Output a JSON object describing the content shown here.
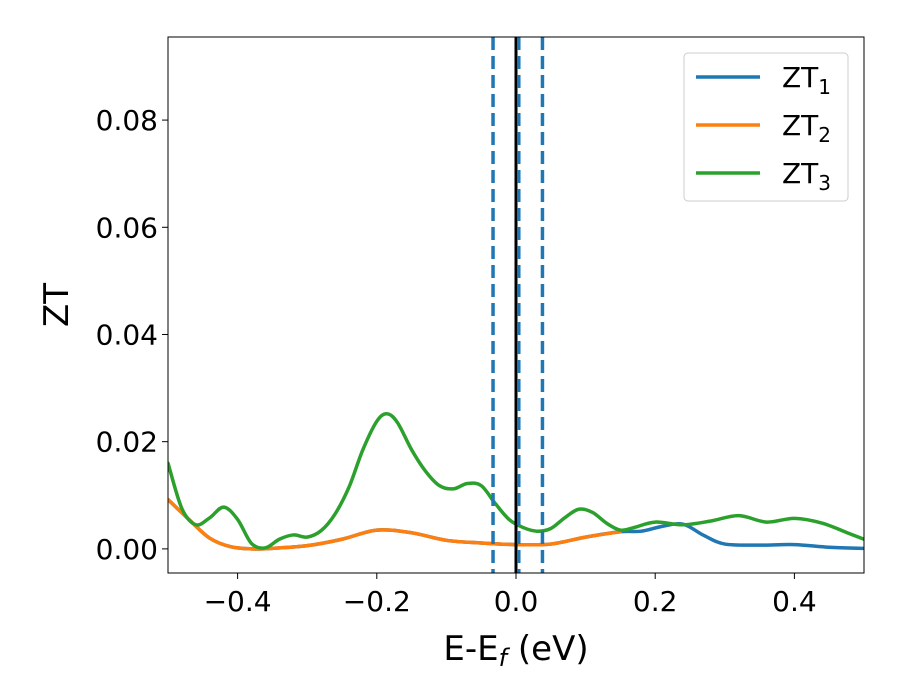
{
  "chart_data": {
    "type": "line",
    "xlabel": {
      "main": "E-E",
      "sub": "f",
      "tail": " (eV)"
    },
    "ylabel": "ZT",
    "xlim": [
      -0.5,
      0.5
    ],
    "ylim": [
      -0.0045,
      0.0955
    ],
    "x_ticks": [
      -0.4,
      -0.2,
      0.0,
      0.2,
      0.4
    ],
    "x_tick_labels": [
      "−0.4",
      "−0.2",
      "0.0",
      "0.2",
      "0.4"
    ],
    "y_ticks": [
      0.0,
      0.02,
      0.04,
      0.06,
      0.08
    ],
    "y_tick_labels": [
      "0.00",
      "0.02",
      "0.04",
      "0.06",
      "0.08"
    ],
    "grid": false,
    "legend_position": "top-right",
    "vertical_lines": [
      {
        "x": -0.033,
        "style": "dashed",
        "color": "#1f77b4"
      },
      {
        "x": 0.0,
        "style": "solid",
        "color": "#000000"
      },
      {
        "x": 0.004,
        "style": "dashed",
        "color": "#1f77b4"
      },
      {
        "x": 0.038,
        "style": "dashed",
        "color": "#1f77b4"
      }
    ],
    "series": [
      {
        "name": "ZT",
        "sub": "1",
        "color": "#1f77b4",
        "x": [
          -0.5,
          -0.47,
          -0.44,
          -0.41,
          -0.38,
          -0.35,
          -0.3,
          -0.25,
          -0.2,
          -0.15,
          -0.1,
          -0.05,
          0.0,
          0.05,
          0.1,
          0.15,
          0.18,
          0.21,
          0.24,
          0.27,
          0.3,
          0.35,
          0.4,
          0.45,
          0.5
        ],
        "y": [
          0.0092,
          0.0055,
          0.002,
          0.0004,
          0.0,
          0.0001,
          0.0006,
          0.0018,
          0.0035,
          0.003,
          0.0016,
          0.0011,
          0.0008,
          0.0009,
          0.0022,
          0.0032,
          0.0033,
          0.0042,
          0.0046,
          0.0025,
          0.0009,
          0.0007,
          0.0008,
          0.0003,
          0.0001
        ]
      },
      {
        "name": "ZT",
        "sub": "2",
        "color": "#ff7f0e",
        "x": [
          -0.5,
          -0.47,
          -0.44,
          -0.41,
          -0.38,
          -0.35,
          -0.3,
          -0.25,
          -0.2,
          -0.15,
          -0.1,
          -0.05,
          0.0,
          0.05,
          0.1,
          0.15
        ],
        "y": [
          0.0092,
          0.0055,
          0.002,
          0.0004,
          0.0,
          0.0001,
          0.0006,
          0.0018,
          0.0035,
          0.003,
          0.0016,
          0.0011,
          0.0008,
          0.0009,
          0.0022,
          0.0032
        ]
      },
      {
        "name": "ZT",
        "sub": "3",
        "color": "#2ca02c",
        "x": [
          -0.5,
          -0.48,
          -0.46,
          -0.44,
          -0.42,
          -0.4,
          -0.38,
          -0.36,
          -0.34,
          -0.32,
          -0.3,
          -0.28,
          -0.26,
          -0.24,
          -0.22,
          -0.2,
          -0.185,
          -0.17,
          -0.15,
          -0.13,
          -0.11,
          -0.09,
          -0.07,
          -0.05,
          -0.03,
          -0.01,
          0.01,
          0.03,
          0.05,
          0.07,
          0.09,
          0.11,
          0.13,
          0.15,
          0.17,
          0.2,
          0.24,
          0.28,
          0.32,
          0.36,
          0.4,
          0.44,
          0.48,
          0.5
        ],
        "y": [
          0.016,
          0.0075,
          0.0045,
          0.0058,
          0.0078,
          0.0055,
          0.001,
          0.0002,
          0.0018,
          0.0026,
          0.0022,
          0.0034,
          0.0065,
          0.0115,
          0.0185,
          0.0238,
          0.0252,
          0.0235,
          0.0185,
          0.0145,
          0.0118,
          0.0112,
          0.0122,
          0.0118,
          0.0085,
          0.0055,
          0.004,
          0.0033,
          0.0038,
          0.0058,
          0.0074,
          0.0068,
          0.0048,
          0.0035,
          0.004,
          0.005,
          0.0045,
          0.0052,
          0.0062,
          0.005,
          0.0057,
          0.0048,
          0.0028,
          0.0018
        ]
      }
    ]
  }
}
